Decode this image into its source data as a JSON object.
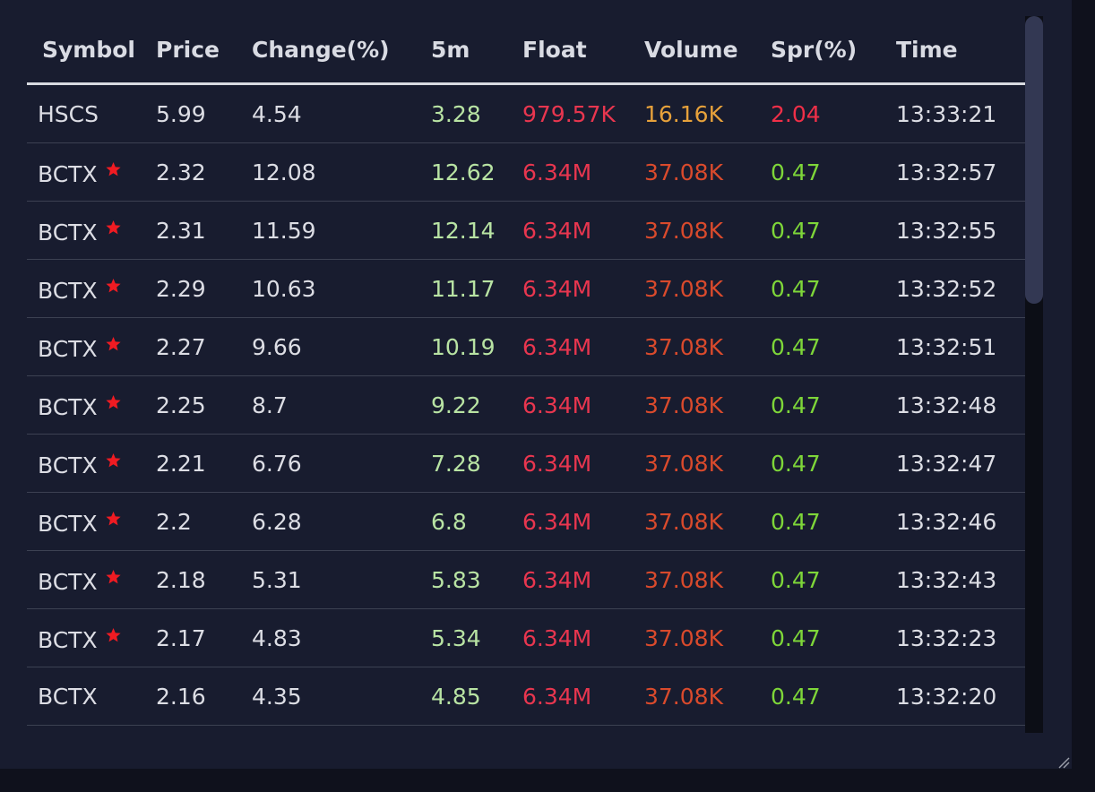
{
  "colors": {
    "panel_bg": "#181c2f",
    "page_bg": "#0f111c",
    "text": "#dcdde4",
    "five_min": "#b8e3a3",
    "float": "#e8364f",
    "volume_high": "#e6a13b",
    "volume": "#d94a2c",
    "spread_red": "#ef2f48",
    "spread_green": "#7ed639",
    "star": "#f01b22"
  },
  "columns": [
    "Symbol",
    "Price",
    "Change(%)",
    "5m",
    "Float",
    "Volume",
    "Spr(%)",
    "Time"
  ],
  "rows": [
    {
      "symbol": "HSCS",
      "starred": false,
      "price": "5.99",
      "change": "4.54",
      "m5": "3.28",
      "float": "979.57K",
      "volume": "16.16K",
      "volume_color": "volume_high",
      "spr": "2.04",
      "spr_color": "spread_red",
      "time": "13:33:21"
    },
    {
      "symbol": "BCTX",
      "starred": true,
      "price": "2.32",
      "change": "12.08",
      "m5": "12.62",
      "float": "6.34M",
      "volume": "37.08K",
      "volume_color": "volume",
      "spr": "0.47",
      "spr_color": "spread_green",
      "time": "13:32:57"
    },
    {
      "symbol": "BCTX",
      "starred": true,
      "price": "2.31",
      "change": "11.59",
      "m5": "12.14",
      "float": "6.34M",
      "volume": "37.08K",
      "volume_color": "volume",
      "spr": "0.47",
      "spr_color": "spread_green",
      "time": "13:32:55"
    },
    {
      "symbol": "BCTX",
      "starred": true,
      "price": "2.29",
      "change": "10.63",
      "m5": "11.17",
      "float": "6.34M",
      "volume": "37.08K",
      "volume_color": "volume",
      "spr": "0.47",
      "spr_color": "spread_green",
      "time": "13:32:52"
    },
    {
      "symbol": "BCTX",
      "starred": true,
      "price": "2.27",
      "change": "9.66",
      "m5": "10.19",
      "float": "6.34M",
      "volume": "37.08K",
      "volume_color": "volume",
      "spr": "0.47",
      "spr_color": "spread_green",
      "time": "13:32:51"
    },
    {
      "symbol": "BCTX",
      "starred": true,
      "price": "2.25",
      "change": "8.7",
      "m5": "9.22",
      "float": "6.34M",
      "volume": "37.08K",
      "volume_color": "volume",
      "spr": "0.47",
      "spr_color": "spread_green",
      "time": "13:32:48"
    },
    {
      "symbol": "BCTX",
      "starred": true,
      "price": "2.21",
      "change": "6.76",
      "m5": "7.28",
      "float": "6.34M",
      "volume": "37.08K",
      "volume_color": "volume",
      "spr": "0.47",
      "spr_color": "spread_green",
      "time": "13:32:47"
    },
    {
      "symbol": "BCTX",
      "starred": true,
      "price": "2.2",
      "change": "6.28",
      "m5": "6.8",
      "float": "6.34M",
      "volume": "37.08K",
      "volume_color": "volume",
      "spr": "0.47",
      "spr_color": "spread_green",
      "time": "13:32:46"
    },
    {
      "symbol": "BCTX",
      "starred": true,
      "price": "2.18",
      "change": "5.31",
      "m5": "5.83",
      "float": "6.34M",
      "volume": "37.08K",
      "volume_color": "volume",
      "spr": "0.47",
      "spr_color": "spread_green",
      "time": "13:32:43"
    },
    {
      "symbol": "BCTX",
      "starred": true,
      "price": "2.17",
      "change": "4.83",
      "m5": "5.34",
      "float": "6.34M",
      "volume": "37.08K",
      "volume_color": "volume",
      "spr": "0.47",
      "spr_color": "spread_green",
      "time": "13:32:23"
    },
    {
      "symbol": "BCTX",
      "starred": false,
      "price": "2.16",
      "change": "4.35",
      "m5": "4.85",
      "float": "6.34M",
      "volume": "37.08K",
      "volume_color": "volume",
      "spr": "0.47",
      "spr_color": "spread_green",
      "time": "13:32:20"
    }
  ],
  "icons": {
    "starred": "star-icon",
    "resize": "resize-grip-icon"
  }
}
